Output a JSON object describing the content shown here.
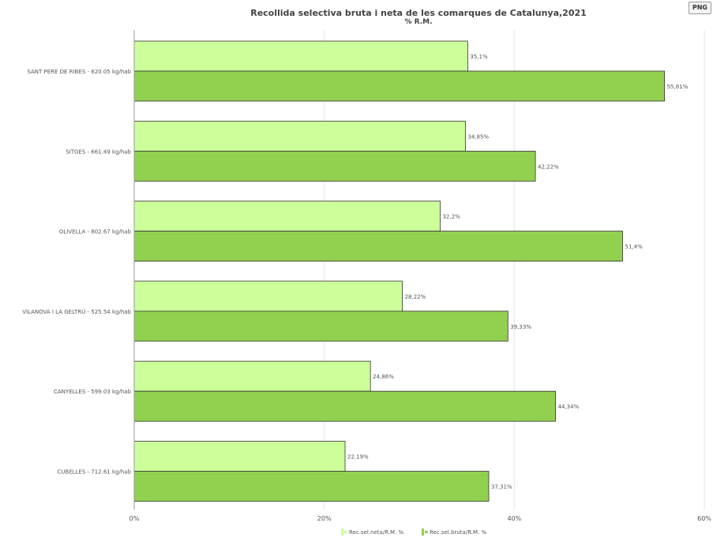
{
  "png_button_label": "PNG",
  "chart_data": {
    "type": "bar",
    "orientation": "horizontal",
    "title": "Recollida selectiva bruta i neta de les comarques de Catalunya,2021",
    "subtitle": "% R.M.",
    "categories": [
      "SANT PERE DE RIBES - 620.05 kg/hab",
      "SITGES - 661.49 kg/hab",
      "OLIVELLA - 802.67 kg/hab",
      "VILANOVA I LA GELTRÚ - 525.54 kg/hab",
      "CANYELLES - 599.03 kg/hab",
      "CUBELLES - 712.61 kg/hab"
    ],
    "series": [
      {
        "name": "Rec.sel.neta/R.M. %",
        "color": "#ccff99",
        "values": [
          35.1,
          34.85,
          32.2,
          28.22,
          24.86,
          22.19
        ],
        "labels": [
          "35,1%",
          "34,85%",
          "32,2%",
          "28,22%",
          "24,86%",
          "22,19%"
        ]
      },
      {
        "name": "Rec.sel.bruta/R.M. %",
        "color": "#92d050",
        "values": [
          55.81,
          42.22,
          51.4,
          39.33,
          44.34,
          37.31
        ],
        "labels": [
          "55,81%",
          "42,22%",
          "51,4%",
          "39,33%",
          "44,34%",
          "37,31%"
        ]
      }
    ],
    "xlim": [
      0,
      60
    ],
    "ticks": [
      {
        "value": 0,
        "label": "0%"
      },
      {
        "value": 20,
        "label": "20%"
      },
      {
        "value": 40,
        "label": "40%"
      },
      {
        "value": 60,
        "label": "60%"
      }
    ],
    "grid": true,
    "legend_position": "bottom"
  }
}
